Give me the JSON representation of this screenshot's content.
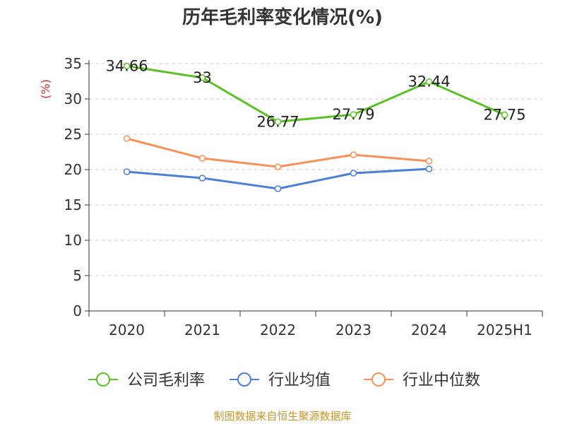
{
  "chart_data": {
    "type": "line",
    "title": "历年毛利率变化情况(%)",
    "ylabel": "(%)",
    "xlabel": "",
    "categories": [
      "2020",
      "2021",
      "2022",
      "2023",
      "2024",
      "2025H1"
    ],
    "ylim": [
      0,
      35
    ],
    "yticks": [
      0,
      5,
      10,
      15,
      20,
      25,
      30,
      35
    ],
    "grid": true,
    "legend_position": "bottom",
    "series": [
      {
        "name": "公司毛利率",
        "color": "#5cc126",
        "values": [
          34.66,
          33,
          26.77,
          27.79,
          32.44,
          27.75
        ],
        "labels": [
          "34.66",
          "33",
          "26.77",
          "27.79",
          "32.44",
          "27.75"
        ]
      },
      {
        "name": "行业均值",
        "color": "#4b7fd8",
        "values": [
          19.7,
          18.8,
          17.3,
          19.5,
          20.1,
          null
        ]
      },
      {
        "name": "行业中位数",
        "color": "#f7915a",
        "values": [
          24.4,
          21.6,
          20.4,
          22.1,
          21.2,
          null
        ]
      }
    ]
  },
  "source": "制图数据来自恒生聚源数据库"
}
